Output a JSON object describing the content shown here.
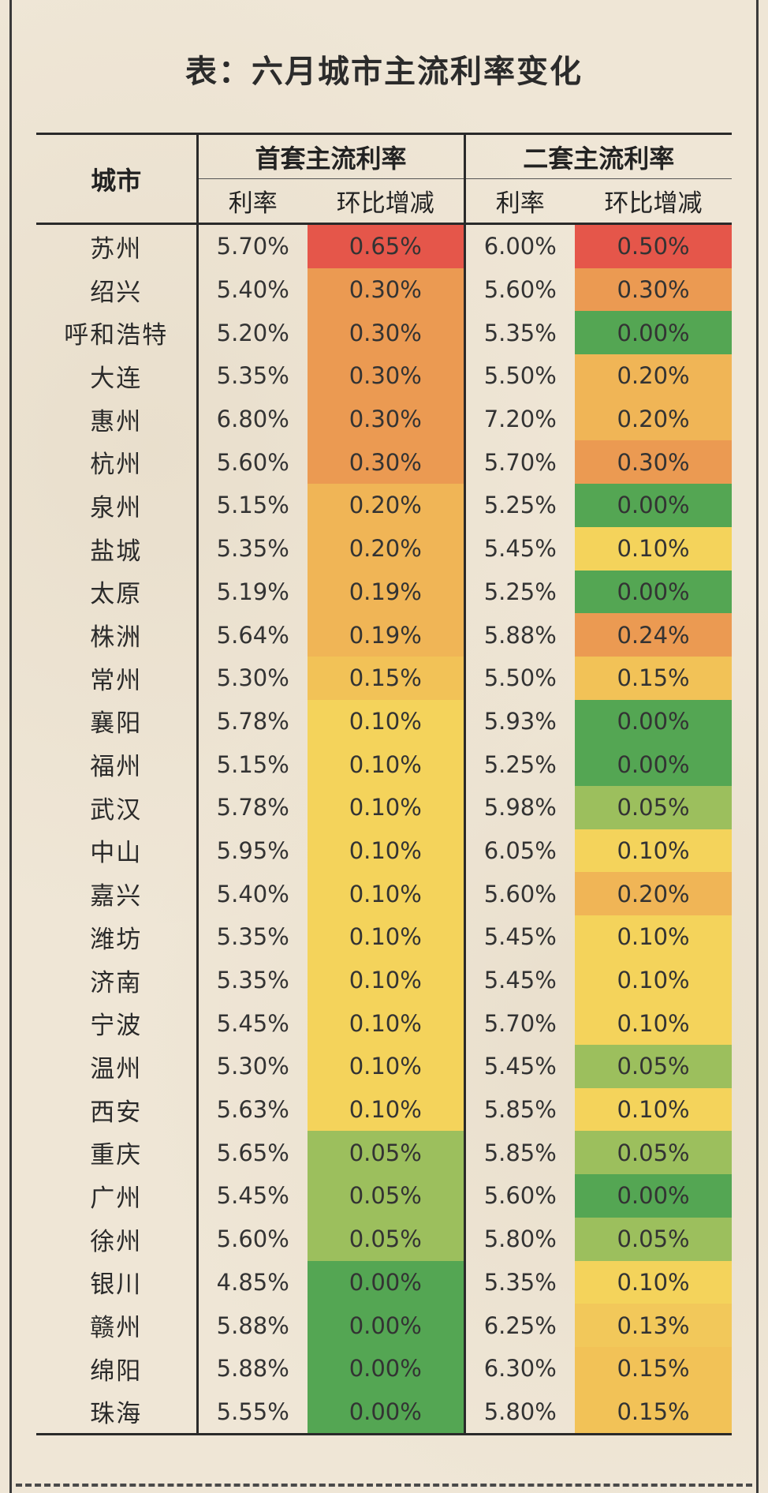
{
  "title": "表：六月城市主流利率变化",
  "headers": {
    "city": "城市",
    "group1": "首套主流利率",
    "group2": "二套主流利率",
    "rate": "利率",
    "change": "环比增减"
  },
  "colors": {
    "0.65": "#e5564a",
    "0.50": "#e5564a",
    "0.30": "#eb9a52",
    "0.24": "#eb9a52",
    "0.20": "#f0b556",
    "0.19": "#f0b556",
    "0.15": "#f2c257",
    "0.13": "#f2c85a",
    "0.10": "#f4d35b",
    "0.05": "#9cbf5d",
    "0.00": "#54a653"
  },
  "rows": [
    {
      "city": "苏州",
      "r1": "5.70%",
      "d1": "0.65%",
      "r2": "6.00%",
      "d2": "0.50%"
    },
    {
      "city": "绍兴",
      "r1": "5.40%",
      "d1": "0.30%",
      "r2": "5.60%",
      "d2": "0.30%"
    },
    {
      "city": "呼和浩特",
      "r1": "5.20%",
      "d1": "0.30%",
      "r2": "5.35%",
      "d2": "0.00%"
    },
    {
      "city": "大连",
      "r1": "5.35%",
      "d1": "0.30%",
      "r2": "5.50%",
      "d2": "0.20%"
    },
    {
      "city": "惠州",
      "r1": "6.80%",
      "d1": "0.30%",
      "r2": "7.20%",
      "d2": "0.20%"
    },
    {
      "city": "杭州",
      "r1": "5.60%",
      "d1": "0.30%",
      "r2": "5.70%",
      "d2": "0.30%"
    },
    {
      "city": "泉州",
      "r1": "5.15%",
      "d1": "0.20%",
      "r2": "5.25%",
      "d2": "0.00%"
    },
    {
      "city": "盐城",
      "r1": "5.35%",
      "d1": "0.20%",
      "r2": "5.45%",
      "d2": "0.10%"
    },
    {
      "city": "太原",
      "r1": "5.19%",
      "d1": "0.19%",
      "r2": "5.25%",
      "d2": "0.00%"
    },
    {
      "city": "株洲",
      "r1": "5.64%",
      "d1": "0.19%",
      "r2": "5.88%",
      "d2": "0.24%"
    },
    {
      "city": "常州",
      "r1": "5.30%",
      "d1": "0.15%",
      "r2": "5.50%",
      "d2": "0.15%"
    },
    {
      "city": "襄阳",
      "r1": "5.78%",
      "d1": "0.10%",
      "r2": "5.93%",
      "d2": "0.00%"
    },
    {
      "city": "福州",
      "r1": "5.15%",
      "d1": "0.10%",
      "r2": "5.25%",
      "d2": "0.00%"
    },
    {
      "city": "武汉",
      "r1": "5.78%",
      "d1": "0.10%",
      "r2": "5.98%",
      "d2": "0.05%"
    },
    {
      "city": "中山",
      "r1": "5.95%",
      "d1": "0.10%",
      "r2": "6.05%",
      "d2": "0.10%"
    },
    {
      "city": "嘉兴",
      "r1": "5.40%",
      "d1": "0.10%",
      "r2": "5.60%",
      "d2": "0.20%"
    },
    {
      "city": "潍坊",
      "r1": "5.35%",
      "d1": "0.10%",
      "r2": "5.45%",
      "d2": "0.10%"
    },
    {
      "city": "济南",
      "r1": "5.35%",
      "d1": "0.10%",
      "r2": "5.45%",
      "d2": "0.10%"
    },
    {
      "city": "宁波",
      "r1": "5.45%",
      "d1": "0.10%",
      "r2": "5.70%",
      "d2": "0.10%"
    },
    {
      "city": "温州",
      "r1": "5.30%",
      "d1": "0.10%",
      "r2": "5.45%",
      "d2": "0.05%"
    },
    {
      "city": "西安",
      "r1": "5.63%",
      "d1": "0.10%",
      "r2": "5.85%",
      "d2": "0.10%"
    },
    {
      "city": "重庆",
      "r1": "5.65%",
      "d1": "0.05%",
      "r2": "5.85%",
      "d2": "0.05%"
    },
    {
      "city": "广州",
      "r1": "5.45%",
      "d1": "0.05%",
      "r2": "5.60%",
      "d2": "0.00%"
    },
    {
      "city": "徐州",
      "r1": "5.60%",
      "d1": "0.05%",
      "r2": "5.80%",
      "d2": "0.05%"
    },
    {
      "city": "银川",
      "r1": "4.85%",
      "d1": "0.00%",
      "r2": "5.35%",
      "d2": "0.10%"
    },
    {
      "city": "赣州",
      "r1": "5.88%",
      "d1": "0.00%",
      "r2": "6.25%",
      "d2": "0.13%"
    },
    {
      "city": "绵阳",
      "r1": "5.88%",
      "d1": "0.00%",
      "r2": "6.30%",
      "d2": "0.15%"
    },
    {
      "city": "珠海",
      "r1": "5.55%",
      "d1": "0.00%",
      "r2": "5.80%",
      "d2": "0.15%"
    }
  ]
}
